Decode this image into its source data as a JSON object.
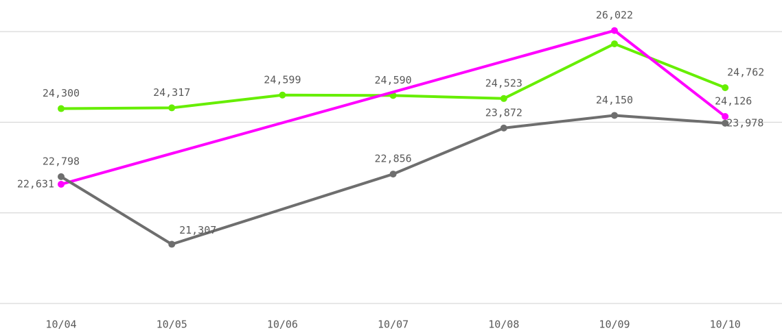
{
  "chart_data": {
    "type": "line",
    "categories": [
      "10/04",
      "10/05",
      "10/06",
      "10/07",
      "10/08",
      "10/09",
      "10/10"
    ],
    "ylim": [
      20000,
      26500
    ],
    "yticks": [
      20000,
      22000,
      24000,
      26000
    ],
    "grid": true,
    "series": [
      {
        "color": "#66ee00",
        "x": [
          "10/04",
          "10/05",
          "10/06",
          "10/07",
          "10/08",
          "10/09",
          "10/10"
        ],
        "values": [
          24300,
          24317,
          24599,
          24590,
          24523,
          25730,
          24762
        ],
        "value_labels": [
          "24,300",
          "24,317",
          "24,599",
          "24,590",
          "24,523",
          null,
          "24,762"
        ]
      },
      {
        "color": "#ff00ff",
        "x": [
          "10/04",
          "10/09",
          "10/10"
        ],
        "values": [
          22631,
          26022,
          24126
        ],
        "value_labels": [
          "22,631",
          "26,022",
          "24,126"
        ]
      },
      {
        "color": "#6e6e6e",
        "x": [
          "10/04",
          "10/05",
          "10/07",
          "10/08",
          "10/09",
          "10/10"
        ],
        "values": [
          22798,
          21307,
          22856,
          23872,
          24150,
          23978
        ],
        "value_labels": [
          "22,798",
          "21,307",
          "22,856",
          "23,872",
          "24,150",
          "23,978"
        ]
      }
    ]
  }
}
